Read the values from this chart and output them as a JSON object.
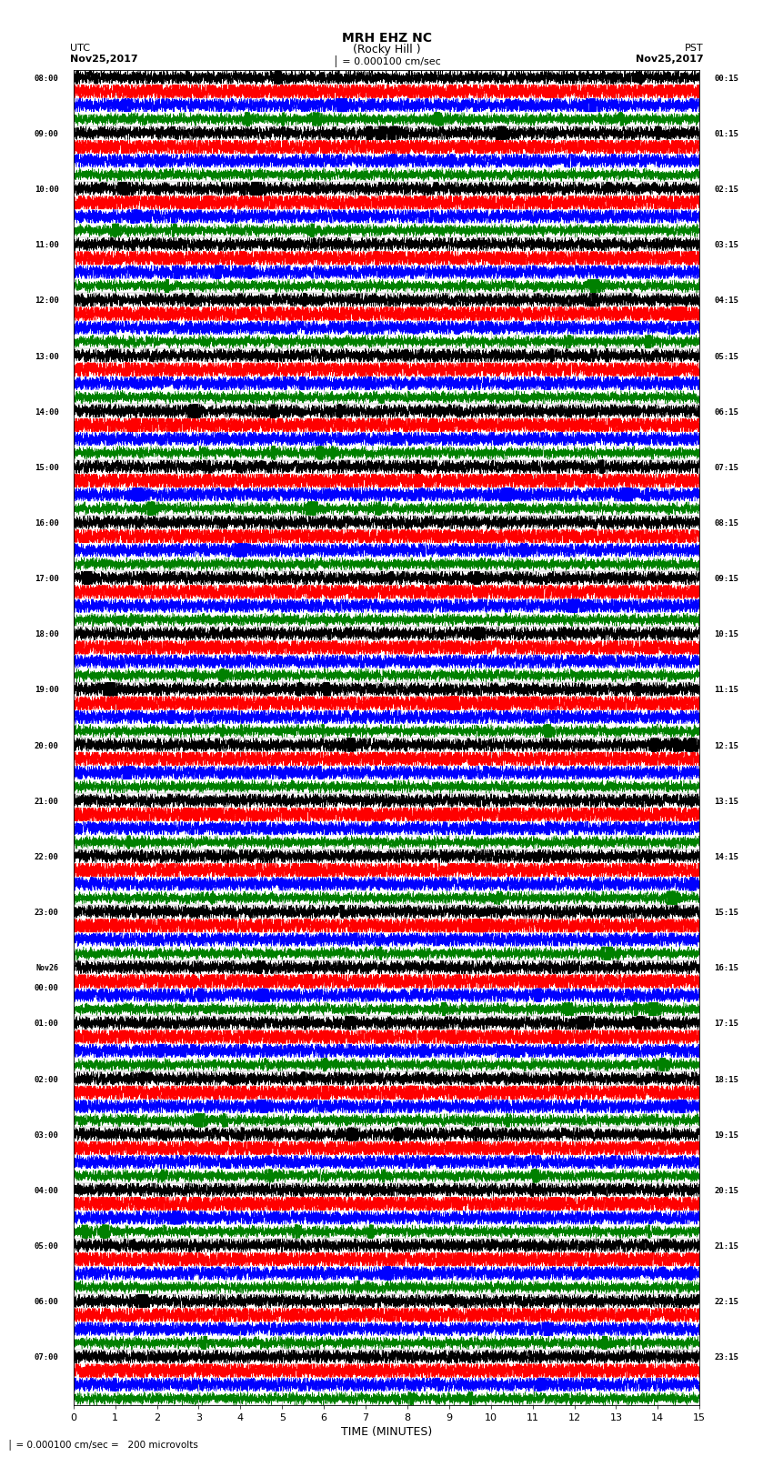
{
  "title_line1": "MRH EHZ NC",
  "title_line2": "(Rocky Hill )",
  "title_line3": "│ = 0.000100 cm/sec",
  "left_label_line1": "UTC",
  "left_label_line2": "Nov25,2017",
  "right_label_line1": "PST",
  "right_label_line2": "Nov25,2017",
  "xlabel": "TIME (MINUTES)",
  "bottom_label": "│ = 0.000100 cm/sec =   200 microvolts",
  "utc_times": [
    "08:00",
    "09:00",
    "10:00",
    "11:00",
    "12:00",
    "13:00",
    "14:00",
    "15:00",
    "16:00",
    "17:00",
    "18:00",
    "19:00",
    "20:00",
    "21:00",
    "22:00",
    "23:00",
    "Nov26\n00:00",
    "01:00",
    "02:00",
    "03:00",
    "04:00",
    "05:00",
    "06:00",
    "07:00"
  ],
  "pst_times": [
    "00:15",
    "01:15",
    "02:15",
    "03:15",
    "04:15",
    "05:15",
    "06:15",
    "07:15",
    "08:15",
    "09:15",
    "10:15",
    "11:15",
    "12:15",
    "13:15",
    "14:15",
    "15:15",
    "16:15",
    "17:15",
    "18:15",
    "19:15",
    "20:15",
    "21:15",
    "22:15",
    "23:15"
  ],
  "n_rows": 24,
  "n_traces_per_row": 4,
  "colors": [
    "black",
    "red",
    "blue",
    "green"
  ],
  "x_min": 0,
  "x_max": 15,
  "x_ticks": [
    0,
    1,
    2,
    3,
    4,
    5,
    6,
    7,
    8,
    9,
    10,
    11,
    12,
    13,
    14,
    15
  ],
  "bg_color": "white",
  "grid_color": "#888888",
  "figure_width": 8.5,
  "figure_height": 16.13,
  "noise_base": 0.055,
  "n_pts": 9000
}
